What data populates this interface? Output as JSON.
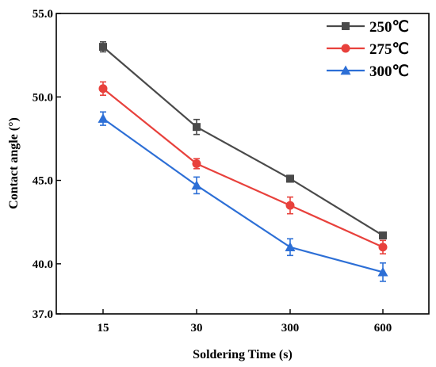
{
  "chart_data": {
    "type": "line",
    "xlabel": "Soldering Time (s)",
    "ylabel": "Contact angle (°)",
    "categories": [
      "15",
      "30",
      "300",
      "600"
    ],
    "ylim": [
      37.0,
      55.0
    ],
    "yticks": [
      "37.0",
      "40.0",
      "45.0",
      "50.0",
      "55.0"
    ],
    "legend_position": "top-right",
    "grid": false,
    "series": [
      {
        "name": "250℃",
        "color": "#4a4a4a",
        "marker": "square",
        "values": [
          53.0,
          48.2,
          45.1,
          41.7
        ],
        "errors": [
          0.3,
          0.45,
          0.2,
          0.15
        ]
      },
      {
        "name": "275℃",
        "color": "#e8413c",
        "marker": "circle",
        "values": [
          50.5,
          46.0,
          43.5,
          41.0
        ],
        "errors": [
          0.4,
          0.3,
          0.5,
          0.4
        ]
      },
      {
        "name": "300℃",
        "color": "#2d6fd6",
        "marker": "triangle",
        "values": [
          48.7,
          44.7,
          41.0,
          39.5
        ],
        "errors": [
          0.4,
          0.5,
          0.5,
          0.55
        ]
      }
    ]
  }
}
